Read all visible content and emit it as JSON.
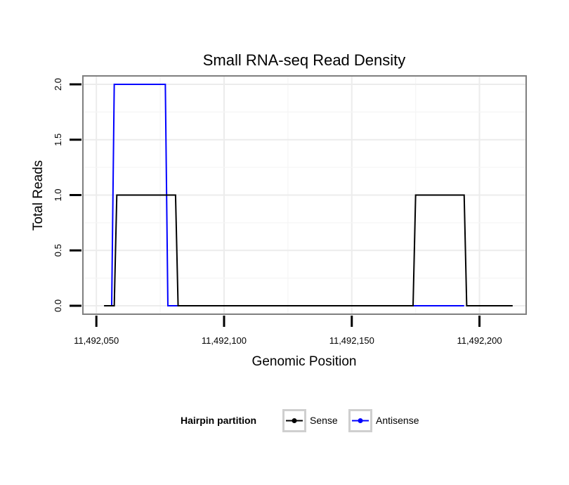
{
  "chart_data": {
    "type": "line",
    "title": "Small RNA-seq Read Density",
    "xlabel": "Genomic Position",
    "ylabel": "Total Reads",
    "xlim": [
      11492045,
      11492218
    ],
    "ylim": [
      -0.07,
      2.07
    ],
    "x_ticks": [
      11492050,
      11492100,
      11492150,
      11492200
    ],
    "x_tick_labels": [
      "11,492,050",
      "11,492,100",
      "11,492,150",
      "11,492,200"
    ],
    "y_ticks": [
      0,
      0.5,
      1,
      1.5,
      2
    ],
    "y_tick_labels": [
      "0.0",
      "0.5",
      "1.0",
      "1.5",
      "2.0"
    ],
    "grid": true,
    "legend": {
      "title": "Hairpin partition",
      "position": "bottom"
    },
    "series": [
      {
        "name": "Sense",
        "color": "#000000",
        "x": [
          11492053,
          11492057,
          11492058,
          11492081,
          11492082,
          11492174,
          11492175,
          11492194,
          11492195,
          11492213
        ],
        "y": [
          0,
          0,
          1,
          1,
          0,
          0,
          1,
          1,
          0,
          0
        ]
      },
      {
        "name": "Antisense",
        "color": "#0000ff",
        "x": [
          11492056,
          11492057,
          11492077,
          11492078,
          11492194
        ],
        "y": [
          0,
          2,
          2,
          0,
          0
        ]
      }
    ]
  }
}
